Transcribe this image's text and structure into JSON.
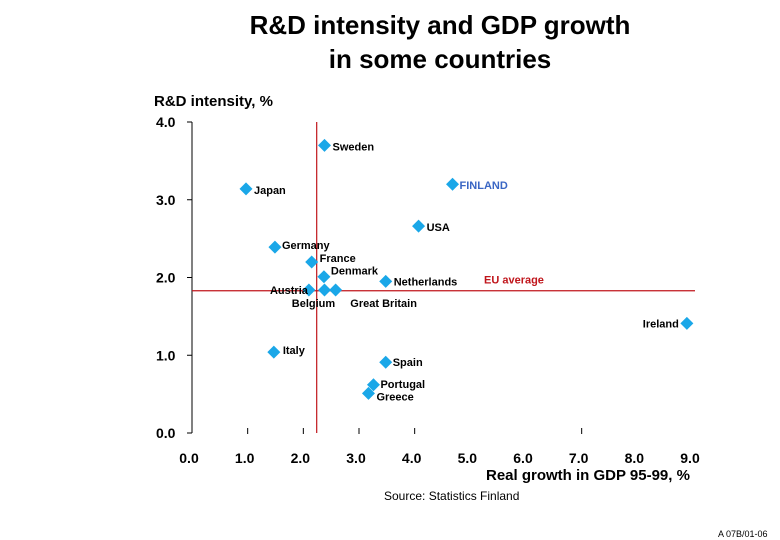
{
  "chart_data": {
    "type": "scatter",
    "title": "R&D intensity and GDP growth in some countries",
    "title_lines": [
      "R&D intensity and GDP growth",
      "in some countries"
    ],
    "xlabel": "Real growth in GDP 95-99, %",
    "ylabel": "R&D intensity, %",
    "xlim": [
      0,
      9
    ],
    "ylim": [
      0,
      4
    ],
    "xticks": [
      "0.0",
      "1.0",
      "2.0",
      "3.0",
      "4.0",
      "5.0",
      "6.0",
      "7.0",
      "8.0",
      "9.0"
    ],
    "yticks": [
      "0.0",
      "1.0",
      "2.0",
      "3.0",
      "4.0"
    ],
    "grid": false,
    "marker_color": "#1aa7e8",
    "highlight_color": "#3a66c4",
    "reference_color": "#c0161c",
    "points": [
      {
        "label": "Sweden",
        "x": 2.38,
        "y": 3.7
      },
      {
        "label": "Japan",
        "x": 0.97,
        "y": 3.14
      },
      {
        "label": "FINLAND",
        "x": 4.68,
        "y": 3.2,
        "highlight": true
      },
      {
        "label": "USA",
        "x": 4.07,
        "y": 2.66
      },
      {
        "label": "Germany",
        "x": 1.49,
        "y": 2.39
      },
      {
        "label": "France",
        "x": 2.15,
        "y": 2.2
      },
      {
        "label": "Denmark",
        "x": 2.37,
        "y": 2.01
      },
      {
        "label": "Netherlands",
        "x": 3.48,
        "y": 1.95
      },
      {
        "label": "Austria",
        "x": 2.1,
        "y": 1.84
      },
      {
        "label": "Belgium",
        "x": 2.38,
        "y": 1.84
      },
      {
        "label": "Great Britain",
        "x": 2.58,
        "y": 1.84
      },
      {
        "label": "Ireland",
        "x": 8.89,
        "y": 1.41
      },
      {
        "label": "Italy",
        "x": 1.47,
        "y": 1.04
      },
      {
        "label": "Spain",
        "x": 3.48,
        "y": 0.91
      },
      {
        "label": "Portugal",
        "x": 3.26,
        "y": 0.62
      },
      {
        "label": "Greece",
        "x": 3.17,
        "y": 0.51
      }
    ],
    "reference_lines": {
      "label": "EU average",
      "x": 2.24,
      "y": 1.83
    }
  },
  "footer": {
    "source": "Source: Statistics Finland",
    "code": "A 07B/01-06"
  }
}
